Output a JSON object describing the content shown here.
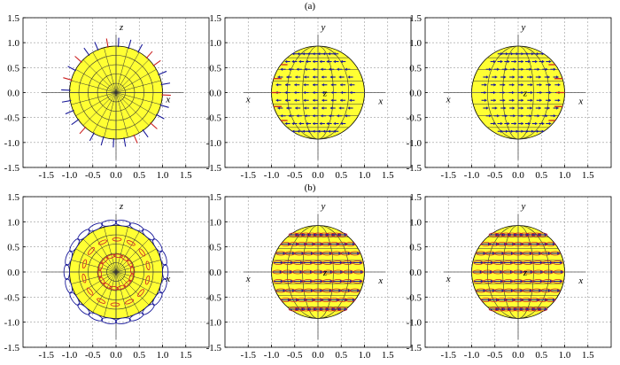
{
  "figure": {
    "row_labels": [
      "(a)",
      "(b)"
    ]
  },
  "chart_data": {
    "type": "scatter",
    "rows": [
      {
        "label": "(a)",
        "panels": [
          {
            "type": "scatter",
            "view": "polar-top",
            "xlim": [
              -2,
              2
            ],
            "ylim": [
              -1.5,
              1.5
            ],
            "xticks": [
              -1.5,
              -1.0,
              -0.5,
              0.0,
              0.5,
              1.0,
              1.5
            ],
            "yticks": [
              -1.5,
              -1.0,
              -0.5,
              0.0,
              0.5,
              1.0,
              1.5
            ],
            "axis_names": {
              "vertical": "z",
              "horizontal": "x",
              "center": ""
            },
            "sphere_radius": 1.0,
            "field": "radial-lines",
            "grid": true
          },
          {
            "type": "scatter",
            "view": "side",
            "xlim": [
              -2,
              2
            ],
            "ylim": [
              -1.5,
              1.5
            ],
            "xticks": [
              -1.5,
              -1.0,
              -0.5,
              0.0,
              0.5,
              1.0,
              1.5
            ],
            "yticks": [
              -1.5,
              -1.0,
              -0.5,
              0.0,
              0.5,
              1.0,
              1.5
            ],
            "axis_names": {
              "vertical": "y",
              "horizontal": "x",
              "center": "z"
            },
            "sphere_radius": 1.0,
            "field": "arrows-left",
            "grid": true
          },
          {
            "type": "scatter",
            "view": "side",
            "xlim": [
              -2,
              2
            ],
            "ylim": [
              -1.5,
              1.5
            ],
            "xticks": [
              -1.5,
              -1.0,
              -0.5,
              0.0,
              0.5,
              1.0,
              1.5
            ],
            "yticks": [
              -1.5,
              -1.0,
              -0.5,
              0.0,
              0.5,
              1.0,
              1.5
            ],
            "axis_names": {
              "vertical": "y",
              "horizontal": "x",
              "center": "z"
            },
            "sphere_radius": 1.0,
            "field": "arrows-right",
            "grid": true
          }
        ]
      },
      {
        "label": "(b)",
        "panels": [
          {
            "type": "scatter",
            "view": "polar-top",
            "xlim": [
              -2,
              2
            ],
            "ylim": [
              -1.5,
              1.5
            ],
            "xticks": [
              -1.5,
              -1.0,
              -0.5,
              0.0,
              0.5,
              1.0,
              1.5
            ],
            "yticks": [
              -1.5,
              -1.0,
              -0.5,
              0.0,
              0.5,
              1.0,
              1.5
            ],
            "axis_names": {
              "vertical": "z",
              "horizontal": "x",
              "center": ""
            },
            "sphere_radius": 1.0,
            "field": "ellipse-loops",
            "grid": true
          },
          {
            "type": "scatter",
            "view": "side",
            "xlim": [
              -2,
              2
            ],
            "ylim": [
              -1.5,
              1.5
            ],
            "xticks": [
              -1.5,
              -1.0,
              -0.5,
              0.0,
              0.5,
              1.0,
              1.5
            ],
            "yticks": [
              -1.5,
              -1.0,
              -0.5,
              0.0,
              0.5,
              1.0,
              1.5
            ],
            "axis_names": {
              "vertical": "y",
              "horizontal": "x",
              "center": "z"
            },
            "sphere_radius": 1.0,
            "field": "ellipse-arrows",
            "grid": true
          },
          {
            "type": "scatter",
            "view": "side",
            "xlim": [
              -2,
              2
            ],
            "ylim": [
              -1.5,
              1.5
            ],
            "xticks": [
              -1.5,
              -1.0,
              -0.5,
              0.0,
              0.5,
              1.0,
              1.5
            ],
            "yticks": [
              -1.5,
              -1.0,
              -0.5,
              0.0,
              0.5,
              1.0,
              1.5
            ],
            "axis_names": {
              "vertical": "y",
              "horizontal": "x",
              "center": "z"
            },
            "sphere_radius": 1.0,
            "field": "ellipse-arrows",
            "grid": true
          }
        ]
      }
    ],
    "colors": {
      "sphere": "#ffff33",
      "sphere_edge": "#000000",
      "vector_blue": "#1a1a99",
      "vector_red": "#cc2222",
      "grid": "#999999"
    }
  }
}
